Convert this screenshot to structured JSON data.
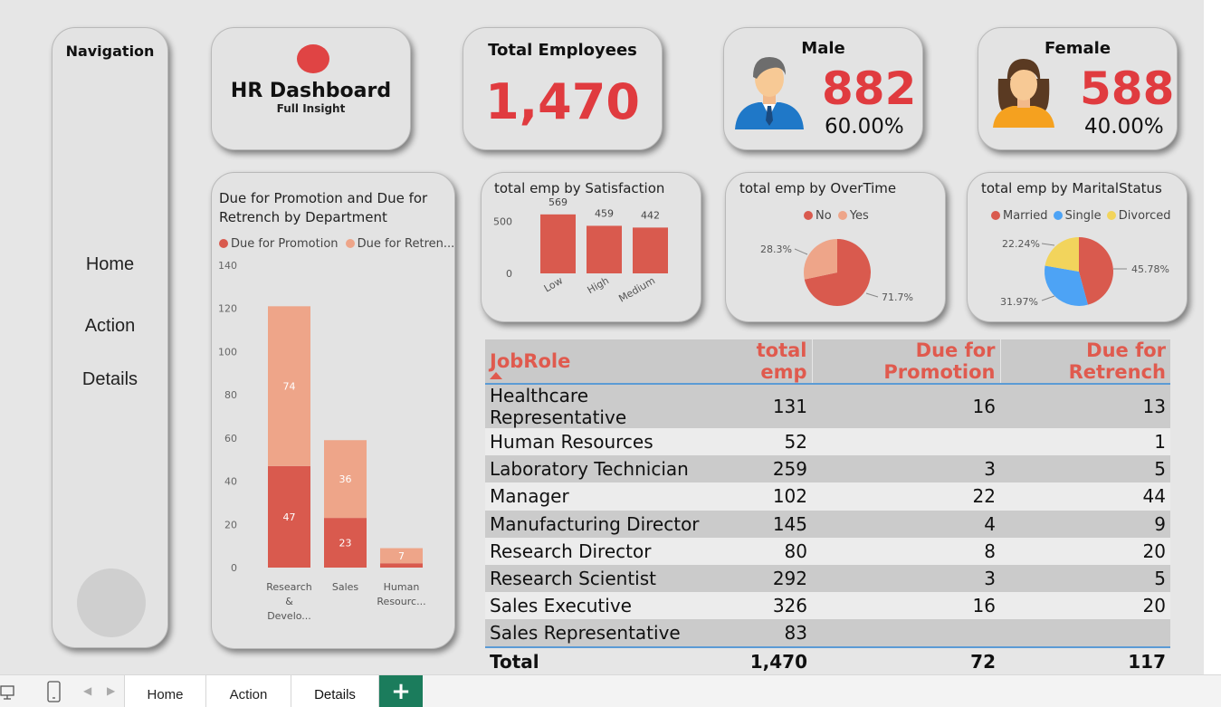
{
  "nav": {
    "title": "Navigation",
    "items": [
      "Home",
      "Action",
      "Details"
    ]
  },
  "header": {
    "title": "HR Dashboard",
    "subtitle": "Full Insight",
    "logo_color": "#e04444"
  },
  "kpis": {
    "total": {
      "title": "Total Employees",
      "value": "1,470"
    },
    "male": {
      "title": "Male",
      "value": "882",
      "pct": "60.00%"
    },
    "female": {
      "title": "Female",
      "value": "588",
      "pct": "40.00%"
    }
  },
  "colors": {
    "accent_red": "#e03b3f",
    "bar_dark": "#d95a4e",
    "bar_light": "#eea589",
    "single_blue": "#4da3f5",
    "divorced_yellow": "#f2d45c",
    "table_header_text": "#e05a4e"
  },
  "chart_data": [
    {
      "id": "dept",
      "type": "bar",
      "stacked": true,
      "title": "Due for Promotion and Due for Retrench by Department",
      "legend": [
        "Due for Promotion",
        "Due for Retren..."
      ],
      "categories": [
        "Research & Develo...",
        "Sales",
        "Human Resourc..."
      ],
      "series": [
        {
          "name": "Due for Promotion",
          "values": [
            47,
            23,
            2
          ]
        },
        {
          "name": "Due for Retrench",
          "values": [
            74,
            36,
            7
          ]
        }
      ],
      "data_labels": [
        [
          "47",
          "23",
          ""
        ],
        [
          "74",
          "36",
          "7"
        ]
      ],
      "ylim": [
        0,
        140
      ],
      "yticks": [
        0,
        20,
        40,
        60,
        80,
        100,
        120,
        140
      ],
      "grid": false
    },
    {
      "id": "satisfaction",
      "type": "bar",
      "title": "total emp by Satisfaction",
      "categories": [
        "Low",
        "High",
        "Medium"
      ],
      "values": [
        569,
        459,
        442
      ],
      "ylim": [
        0,
        620
      ],
      "yticks": [
        0,
        500
      ]
    },
    {
      "id": "overtime",
      "type": "pie",
      "title": "total emp by OverTime",
      "labels": [
        "No",
        "Yes"
      ],
      "values": [
        71.7,
        28.3
      ],
      "value_labels": [
        "71.7%",
        "28.3%"
      ]
    },
    {
      "id": "marital",
      "type": "pie",
      "title": "total emp by MaritalStatus",
      "labels": [
        "Married",
        "Single",
        "Divorced"
      ],
      "values": [
        45.78,
        31.97,
        22.24
      ],
      "value_labels": [
        "45.78%",
        "31.97%",
        "22.24%"
      ]
    }
  ],
  "table": {
    "columns": [
      "JobRole",
      "total emp",
      "Due for Promotion",
      "Due for Retrench"
    ],
    "rows": [
      [
        "Healthcare Representative",
        "131",
        "16",
        "13"
      ],
      [
        "Human Resources",
        "52",
        "",
        "1"
      ],
      [
        "Laboratory Technician",
        "259",
        "3",
        "5"
      ],
      [
        "Manager",
        "102",
        "22",
        "44"
      ],
      [
        "Manufacturing Director",
        "145",
        "4",
        "9"
      ],
      [
        "Research Director",
        "80",
        "8",
        "20"
      ],
      [
        "Research Scientist",
        "292",
        "3",
        "5"
      ],
      [
        "Sales Executive",
        "326",
        "16",
        "20"
      ],
      [
        "Sales Representative",
        "83",
        "",
        ""
      ]
    ],
    "total": [
      "Total",
      "1,470",
      "72",
      "117"
    ]
  },
  "tabs": [
    "Home",
    "Action",
    "Details"
  ],
  "active_tab": "Details",
  "add_tab_label": "+"
}
